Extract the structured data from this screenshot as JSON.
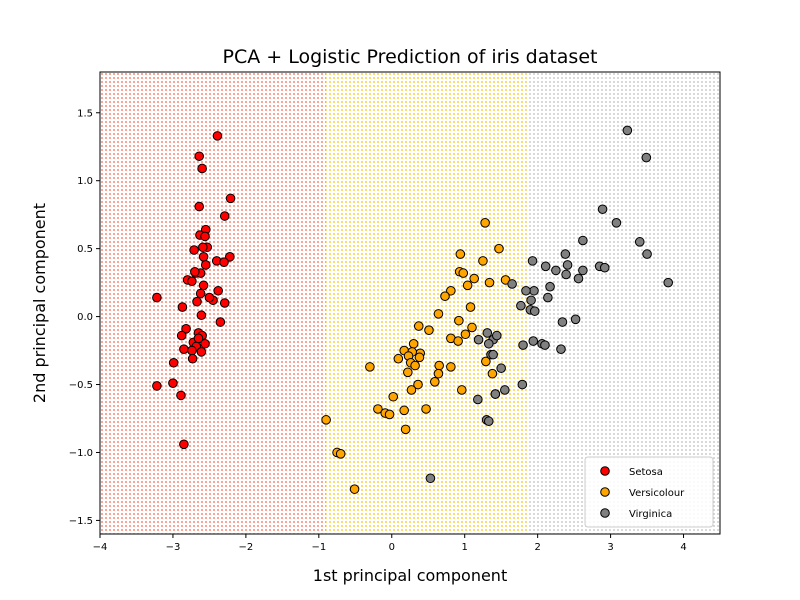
{
  "chart_data": {
    "type": "scatter",
    "title": "PCA + Logistic Prediction of iris dataset",
    "xlabel": "1st principal component",
    "ylabel": "2nd principal component",
    "xlim": [
      -4.0,
      4.5
    ],
    "ylim": [
      -1.6,
      1.8
    ],
    "xticks": [
      -4,
      -3,
      -2,
      -1,
      0,
      1,
      2,
      3,
      4
    ],
    "xtick_labels": [
      "−4",
      "−3",
      "−2",
      "−1",
      "0",
      "1",
      "2",
      "3",
      "4"
    ],
    "yticks": [
      -1.5,
      -1.0,
      -0.5,
      0.0,
      0.5,
      1.0,
      1.5
    ],
    "ytick_labels": [
      "−1.5",
      "−1.0",
      "−0.5",
      "0.0",
      "0.5",
      "1.0",
      "1.5"
    ],
    "legend_position": "lower right",
    "background_regions": [
      {
        "class": "Setosa",
        "color": "#ff6347",
        "x_range": [
          -4.0,
          -0.9
        ]
      },
      {
        "class": "Versicolour",
        "color": "#ffc107",
        "x_range": [
          -0.9,
          1.85
        ]
      },
      {
        "class": "Virginica",
        "color": "#bdbdbd",
        "x_range": [
          1.85,
          4.5
        ]
      }
    ],
    "series": [
      {
        "name": "Setosa",
        "color": "#ff0000",
        "points": [
          [
            -2.39,
            1.33
          ],
          [
            -2.64,
            1.18
          ],
          [
            -2.6,
            1.09
          ],
          [
            -2.21,
            0.87
          ],
          [
            -2.64,
            0.81
          ],
          [
            -2.29,
            0.74
          ],
          [
            -2.55,
            0.64
          ],
          [
            -2.63,
            0.6
          ],
          [
            -2.56,
            0.59
          ],
          [
            -2.53,
            0.51
          ],
          [
            -2.59,
            0.51
          ],
          [
            -2.71,
            0.49
          ],
          [
            -2.58,
            0.44
          ],
          [
            -2.22,
            0.44
          ],
          [
            -2.4,
            0.41
          ],
          [
            -2.3,
            0.4
          ],
          [
            -2.55,
            0.38
          ],
          [
            -2.69,
            0.32
          ],
          [
            -2.62,
            0.32
          ],
          [
            -2.8,
            0.27
          ],
          [
            -2.74,
            0.26
          ],
          [
            -2.58,
            0.23
          ],
          [
            -2.38,
            0.19
          ],
          [
            -2.62,
            0.17
          ],
          [
            -2.45,
            0.12
          ],
          [
            -2.67,
            0.11
          ],
          [
            -2.29,
            0.1
          ],
          [
            -2.87,
            0.07
          ],
          [
            -2.61,
            0.01
          ],
          [
            -2.35,
            -0.04
          ],
          [
            -2.82,
            -0.09
          ],
          [
            -2.65,
            -0.12
          ],
          [
            -2.88,
            -0.14
          ],
          [
            -2.6,
            -0.14
          ],
          [
            -2.72,
            -0.19
          ],
          [
            -2.56,
            -0.2
          ],
          [
            -2.68,
            -0.22
          ],
          [
            -2.85,
            -0.24
          ],
          [
            -2.74,
            -0.25
          ],
          [
            -2.61,
            -0.26
          ],
          [
            -2.73,
            -0.31
          ],
          [
            -2.99,
            -0.34
          ],
          [
            -3.0,
            -0.49
          ],
          [
            -3.22,
            -0.51
          ],
          [
            -2.89,
            -0.58
          ],
          [
            -2.85,
            -0.94
          ],
          [
            -3.22,
            0.14
          ],
          [
            -2.65,
            -0.16
          ],
          [
            -2.7,
            0.33
          ],
          [
            -2.5,
            0.14
          ]
        ]
      },
      {
        "name": "Versicolour",
        "color": "#ffa500",
        "points": [
          [
            1.28,
            0.69
          ],
          [
            1.47,
            0.5
          ],
          [
            0.94,
            0.46
          ],
          [
            1.56,
            0.27
          ],
          [
            1.25,
            0.41
          ],
          [
            0.93,
            0.33
          ],
          [
            0.98,
            0.32
          ],
          [
            1.13,
            0.28
          ],
          [
            1.34,
            0.25
          ],
          [
            1.04,
            0.23
          ],
          [
            0.81,
            0.19
          ],
          [
            0.73,
            0.15
          ],
          [
            1.08,
            0.07
          ],
          [
            0.64,
            0.02
          ],
          [
            0.92,
            -0.03
          ],
          [
            0.37,
            -0.07
          ],
          [
            1.1,
            -0.08
          ],
          [
            0.51,
            -0.1
          ],
          [
            1.01,
            -0.13
          ],
          [
            0.81,
            -0.16
          ],
          [
            0.91,
            -0.18
          ],
          [
            0.3,
            -0.2
          ],
          [
            0.17,
            -0.25
          ],
          [
            0.39,
            -0.27
          ],
          [
            0.28,
            -0.26
          ],
          [
            0.23,
            -0.29
          ],
          [
            0.38,
            -0.3
          ],
          [
            0.09,
            -0.31
          ],
          [
            1.29,
            -0.33
          ],
          [
            0.26,
            -0.34
          ],
          [
            0.32,
            -0.36
          ],
          [
            -0.3,
            -0.37
          ],
          [
            0.65,
            -0.36
          ],
          [
            0.81,
            -0.37
          ],
          [
            0.22,
            -0.41
          ],
          [
            0.64,
            -0.42
          ],
          [
            1.38,
            -0.42
          ],
          [
            0.59,
            -0.48
          ],
          [
            0.36,
            -0.5
          ],
          [
            0.27,
            -0.54
          ],
          [
            0.96,
            -0.54
          ],
          [
            0.02,
            -0.59
          ],
          [
            -0.19,
            -0.68
          ],
          [
            0.47,
            -0.68
          ],
          [
            0.17,
            -0.69
          ],
          [
            -0.09,
            -0.71
          ],
          [
            -0.03,
            -0.72
          ],
          [
            0.19,
            -0.83
          ],
          [
            -0.9,
            -0.76
          ],
          [
            -0.75,
            -1.0
          ],
          [
            -0.7,
            -1.01
          ],
          [
            -0.51,
            -1.27
          ]
        ]
      },
      {
        "name": "Virginica",
        "color": "#808080",
        "points": [
          [
            3.23,
            1.37
          ],
          [
            3.49,
            1.17
          ],
          [
            2.89,
            0.79
          ],
          [
            3.08,
            0.69
          ],
          [
            2.62,
            0.56
          ],
          [
            3.4,
            0.55
          ],
          [
            3.5,
            0.46
          ],
          [
            2.38,
            0.46
          ],
          [
            1.93,
            0.41
          ],
          [
            2.41,
            0.38
          ],
          [
            2.85,
            0.37
          ],
          [
            2.92,
            0.36
          ],
          [
            2.11,
            0.37
          ],
          [
            2.25,
            0.34
          ],
          [
            2.62,
            0.34
          ],
          [
            2.39,
            0.31
          ],
          [
            2.56,
            0.28
          ],
          [
            1.65,
            0.24
          ],
          [
            3.79,
            0.25
          ],
          [
            2.17,
            0.22
          ],
          [
            1.95,
            0.19
          ],
          [
            1.84,
            0.19
          ],
          [
            2.14,
            0.14
          ],
          [
            1.91,
            0.12
          ],
          [
            1.9,
            0.05
          ],
          [
            1.77,
            0.08
          ],
          [
            1.96,
            0.04
          ],
          [
            2.52,
            -0.02
          ],
          [
            2.34,
            -0.04
          ],
          [
            1.19,
            -0.17
          ],
          [
            1.39,
            -0.17
          ],
          [
            1.44,
            -0.14
          ],
          [
            1.31,
            -0.12
          ],
          [
            1.33,
            -0.2
          ],
          [
            1.94,
            -0.18
          ],
          [
            2.06,
            -0.2
          ],
          [
            2.1,
            -0.21
          ],
          [
            1.8,
            -0.21
          ],
          [
            2.32,
            -0.24
          ],
          [
            1.36,
            -0.28
          ],
          [
            1.5,
            -0.38
          ],
          [
            1.79,
            -0.5
          ],
          [
            1.55,
            -0.54
          ],
          [
            1.42,
            -0.57
          ],
          [
            1.18,
            -0.61
          ],
          [
            1.3,
            -0.76
          ],
          [
            1.33,
            -0.77
          ],
          [
            0.53,
            -1.19
          ],
          [
            1.42,
            -0.57
          ],
          [
            1.39,
            -0.28
          ]
        ]
      }
    ]
  }
}
